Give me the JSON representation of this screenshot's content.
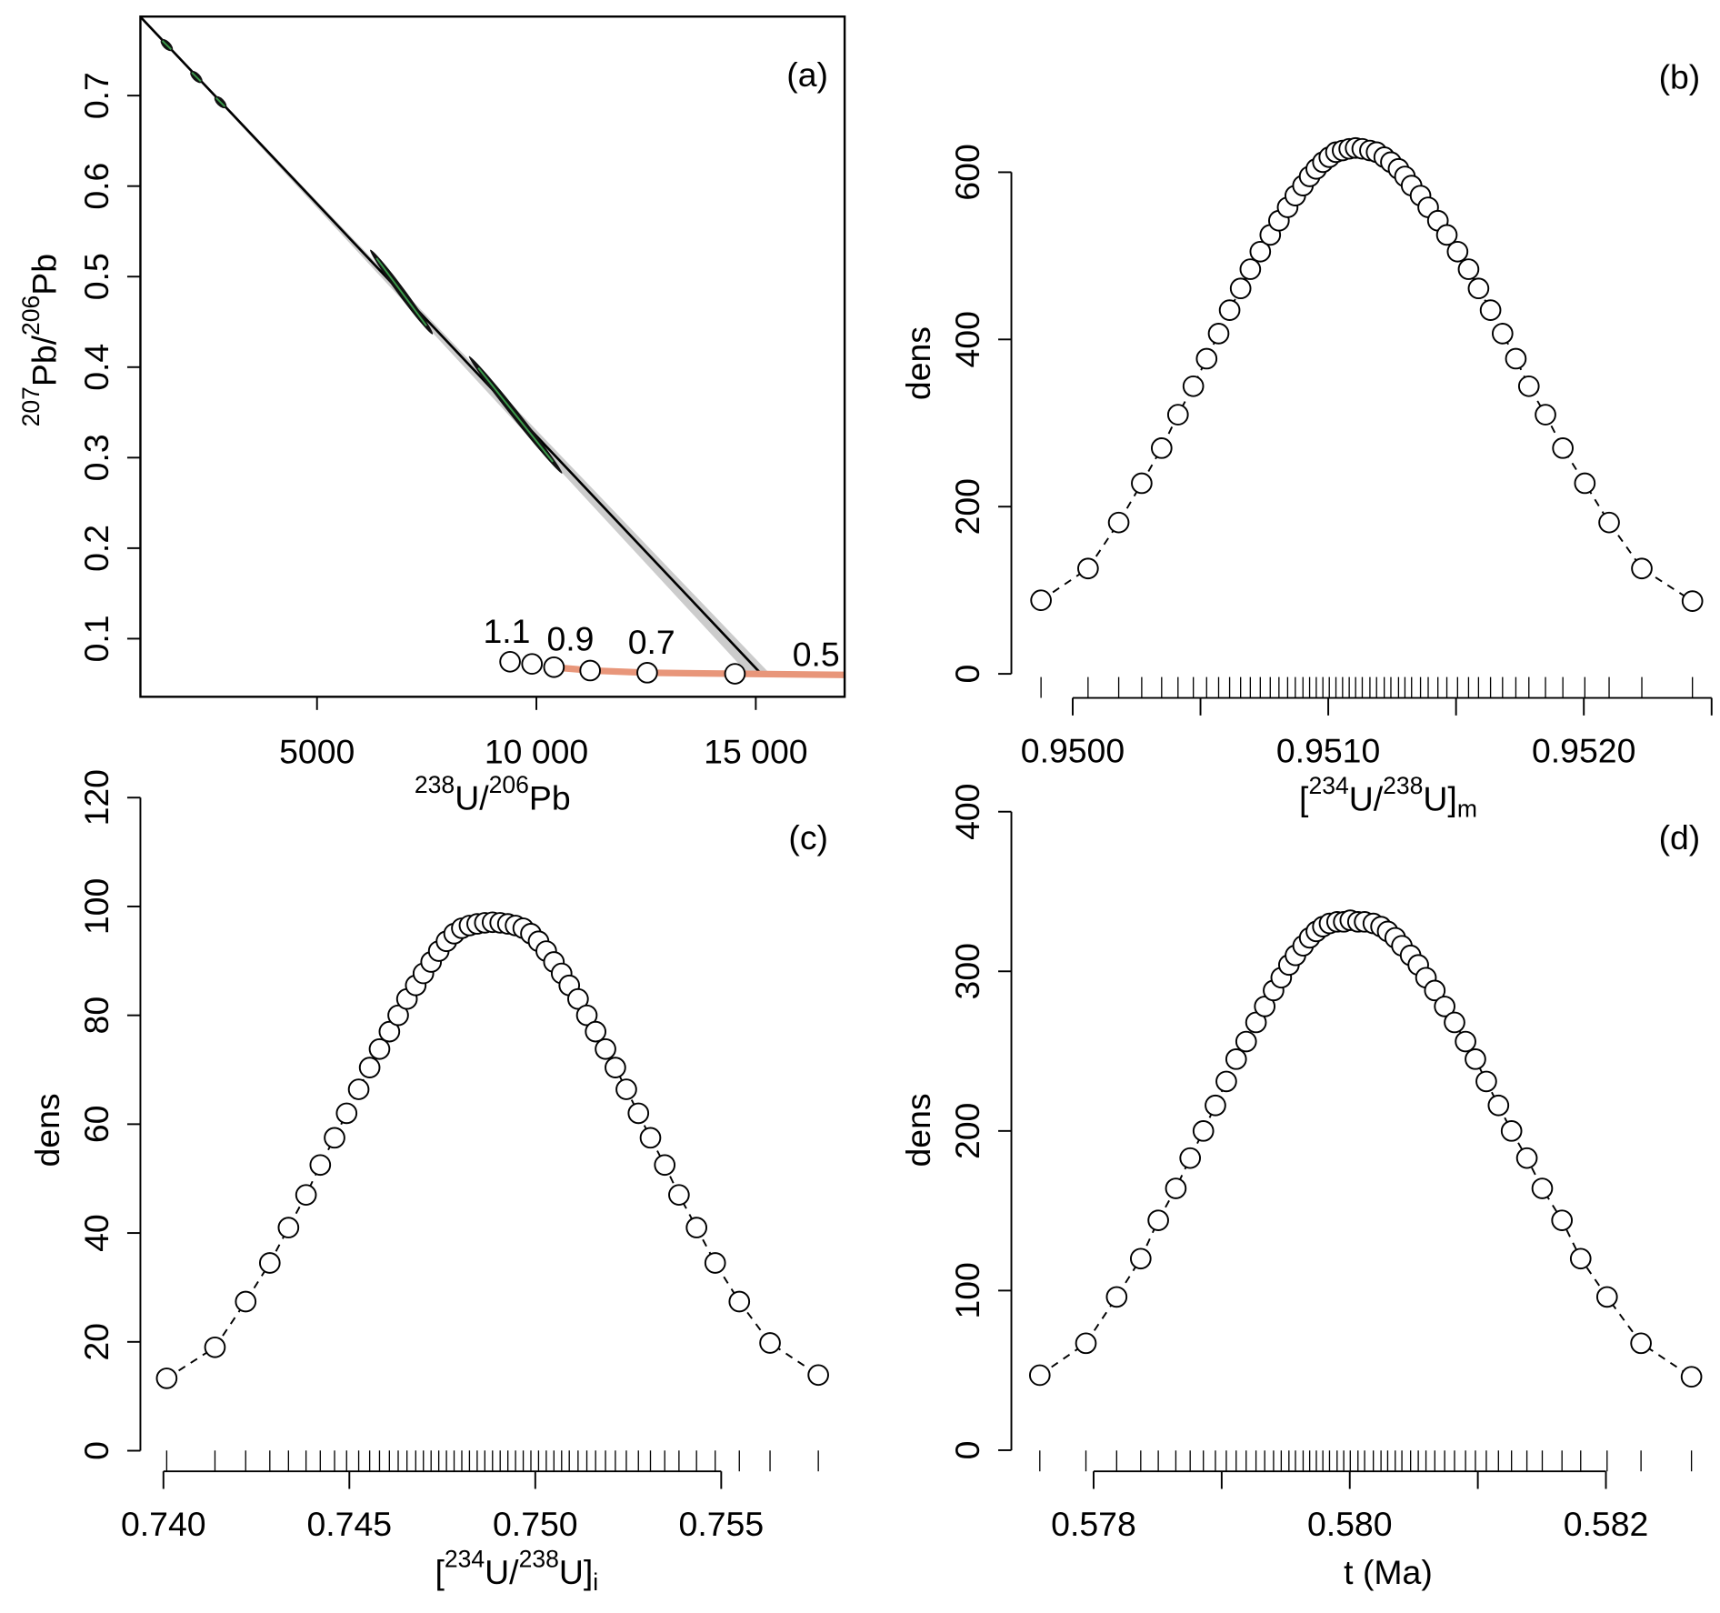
{
  "chart_data": [
    {
      "type": "isochron",
      "label": "(a)",
      "xlabel": [
        {
          "text": "238",
          "style": "sup"
        },
        {
          "text": "U/"
        },
        {
          "text": "206",
          "style": "sup"
        },
        {
          "text": "Pb"
        }
      ],
      "ylabel": [
        {
          "text": "207",
          "style": "sup"
        },
        {
          "text": "Pb/"
        },
        {
          "text": "206",
          "style": "sup"
        },
        {
          "text": "Pb"
        }
      ],
      "xlim": [
        975,
        17025
      ],
      "ylim": [
        0.0358,
        0.7873
      ],
      "xticks": [
        5000,
        {
          "value": 10000,
          "label": "10 000"
        },
        {
          "value": 15000,
          "label": "15 000"
        }
      ],
      "yticks": [
        0.1,
        0.2,
        0.3,
        0.4,
        0.5,
        0.6,
        0.7
      ],
      "box": true,
      "band": {
        "color": "#cccccc",
        "x": [
          975,
          14775,
          15275
        ],
        "y": [
          0.787,
          0.0636,
          0.0636
        ]
      },
      "line": {
        "color": "#000000",
        "x": [
          975,
          15075
        ],
        "y": [
          0.787,
          0.0636
        ]
      },
      "curve": {
        "color": "#e8967a",
        "x": [
          10350,
          11275,
          12525,
          14525,
          17025
        ],
        "y": [
          0.0685,
          0.0648,
          0.0624,
          0.0612,
          0.06
        ]
      },
      "markers": {
        "x": [
          9400,
          9900,
          10400,
          11225,
          12525,
          14525
        ],
        "y": [
          0.0745,
          0.0721,
          0.0685,
          0.0648,
          0.0624,
          0.0612
        ]
      },
      "points": {
        "color": "#111111",
        "line_color": "#3a9a4a",
        "x": [
          1575,
          2250,
          2800,
          6925,
          9525
        ],
        "y": [
          0.7558,
          0.7206,
          0.6927,
          0.483,
          0.3473
        ],
        "x_err": [
          125,
          125,
          125,
          712,
          1062
        ],
        "y_err": [
          0.006,
          0.006,
          0.006,
          0.0467,
          0.0648
        ]
      },
      "annotations": [
        {
          "text": "1.1",
          "x": 9325,
          "y": 0.1085
        },
        {
          "text": "0.9",
          "x": 10775,
          "y": 0.1
        },
        {
          "text": "0.7",
          "x": 12625,
          "y": 0.0964
        },
        {
          "text": "0.5",
          "x": 16375,
          "y": 0.083
        }
      ]
    },
    {
      "type": "scatter",
      "label": "(b)",
      "ylabel": "dens",
      "xlabel": [
        {
          "text": "["
        },
        {
          "text": "234",
          "style": "sup"
        },
        {
          "text": "U/"
        },
        {
          "text": "238",
          "style": "sup"
        },
        {
          "text": "U]"
        },
        {
          "text": "m",
          "style": "sub"
        }
      ],
      "xlim": [
        0.94976,
        0.95252
      ],
      "ylim": [
        -34,
        777
      ],
      "xticks": [
        {
          "value": 0.95,
          "label": "0.9500"
        },
        {
          "value": 0.951,
          "label": "0.9510"
        },
        {
          "value": 0.952,
          "label": "0.9520"
        }
      ],
      "xminorticks": [
        0.9505,
        0.9515,
        0.9525
      ],
      "yticks": [
        0,
        200,
        400,
        600
      ],
      "rug": true,
      "line_style": "dashed",
      "x": [
        0.949876,
        0.95006,
        0.95018,
        0.95027,
        0.950348,
        0.950412,
        0.950472,
        0.950524,
        0.950571,
        0.950614,
        0.950657,
        0.950695,
        0.950734,
        0.950773,
        0.950807,
        0.950841,
        0.950871,
        0.950901,
        0.950927,
        0.950953,
        0.950979,
        0.951004,
        0.95103,
        0.951056,
        0.951082,
        0.951107,
        0.951133,
        0.951163,
        0.951189,
        0.951219,
        0.951245,
        0.951275,
        0.9513,
        0.951326,
        0.951361,
        0.951391,
        0.951429,
        0.951464,
        0.951506,
        0.951549,
        0.951588,
        0.951635,
        0.951682,
        0.951734,
        0.951785,
        0.95185,
        0.951918,
        0.952004,
        0.952099,
        0.952227,
        0.952425
      ],
      "values": [
        88,
        126,
        181,
        228,
        270,
        310,
        344,
        377,
        407,
        435,
        461,
        484,
        505,
        525,
        542,
        558,
        572,
        584,
        595,
        604,
        612,
        618,
        624,
        626,
        628,
        629,
        628,
        626,
        624,
        618,
        612,
        604,
        595,
        584,
        572,
        558,
        542,
        525,
        505,
        484,
        461,
        435,
        407,
        377,
        344,
        310,
        270,
        228,
        181,
        126,
        87
      ]
    },
    {
      "type": "scatter",
      "label": "(c)",
      "ylabel": "dens",
      "xlabel": [
        {
          "text": "["
        },
        {
          "text": "234",
          "style": "sup"
        },
        {
          "text": "U/"
        },
        {
          "text": "238",
          "style": "sup"
        },
        {
          "text": "U]"
        },
        {
          "text": "i",
          "style": "sub"
        }
      ],
      "xlim": [
        0.739381,
        0.758319
      ],
      "ylim": [
        -4.6,
        122.4
      ],
      "xticks": [
        {
          "value": 0.74,
          "label": "0.740"
        },
        0.745,
        {
          "value": 0.75,
          "label": "0.750"
        },
        0.755
      ],
      "yticks": [
        0,
        20,
        40,
        60,
        80,
        100,
        120
      ],
      "rug": true,
      "line_style": "dashed",
      "x": [
        0.740088,
        0.741386,
        0.742212,
        0.742861,
        0.743363,
        0.743835,
        0.744218,
        0.744602,
        0.744926,
        0.745251,
        0.745546,
        0.745811,
        0.746077,
        0.746313,
        0.746549,
        0.746785,
        0.746991,
        0.747198,
        0.747404,
        0.747611,
        0.747817,
        0.748024,
        0.74823,
        0.748437,
        0.748643,
        0.74885,
        0.749056,
        0.749263,
        0.749469,
        0.749676,
        0.749882,
        0.750088,
        0.750295,
        0.750501,
        0.750708,
        0.750914,
        0.75115,
        0.751386,
        0.751622,
        0.751888,
        0.752153,
        0.752448,
        0.752773,
        0.753097,
        0.753481,
        0.753864,
        0.754336,
        0.754838,
        0.755487,
        0.756313,
        0.757611
      ],
      "values": [
        13.3,
        19,
        27.4,
        34.5,
        41,
        47,
        52.5,
        57.5,
        62,
        66.4,
        70.4,
        73.8,
        77,
        80,
        83,
        85.5,
        87.7,
        89.8,
        91.8,
        93.6,
        95,
        96,
        96.5,
        96.8,
        97,
        97.1,
        97,
        96.8,
        96.5,
        96,
        95,
        93.6,
        91.8,
        89.8,
        87.7,
        85.5,
        83,
        80,
        77,
        73.8,
        70.4,
        66.4,
        62,
        57.5,
        52.5,
        47,
        41,
        34.5,
        27.4,
        19.8,
        13.9
      ]
    },
    {
      "type": "scatter",
      "label": "(d)",
      "ylabel": "dens",
      "xlabel": [
        {
          "text": "t (Ma)"
        }
      ],
      "xlim": [
        0.577358,
        0.582865
      ],
      "ylim": [
        -16,
        417
      ],
      "xticks": [
        0.578,
        {
          "value": 0.58,
          "label": "0.580"
        },
        0.582
      ],
      "xminorticks": [
        0.579,
        0.581
      ],
      "yticks": [
        0,
        100,
        200,
        300,
        400
      ],
      "rug": true,
      "line_style": "dashed",
      "x": [
        0.57758,
        0.57794,
        0.57818,
        0.578368,
        0.578505,
        0.578642,
        0.578754,
        0.578857,
        0.578951,
        0.579036,
        0.579113,
        0.579191,
        0.579268,
        0.579336,
        0.579405,
        0.579465,
        0.579525,
        0.579576,
        0.579636,
        0.579687,
        0.579739,
        0.57979,
        0.579842,
        0.579901,
        0.579953,
        0.580004,
        0.580064,
        0.580116,
        0.580184,
        0.580244,
        0.580296,
        0.580355,
        0.580407,
        0.580475,
        0.580535,
        0.580595,
        0.580664,
        0.580741,
        0.580818,
        0.580904,
        0.580981,
        0.581066,
        0.581161,
        0.581263,
        0.581383,
        0.581503,
        0.581657,
        0.581803,
        0.582009,
        0.582274,
        0.582668
      ],
      "values": [
        47,
        67,
        96,
        120,
        144,
        164,
        183,
        200,
        216,
        231,
        245,
        256,
        268,
        278,
        288,
        296,
        304,
        310,
        316,
        321,
        325,
        328,
        330,
        331,
        331,
        332,
        331,
        331,
        330,
        328,
        325,
        321,
        316,
        310,
        304,
        296,
        288,
        278,
        268,
        256,
        245,
        231,
        216,
        200,
        183,
        164,
        144,
        120,
        96,
        67,
        46
      ]
    }
  ]
}
